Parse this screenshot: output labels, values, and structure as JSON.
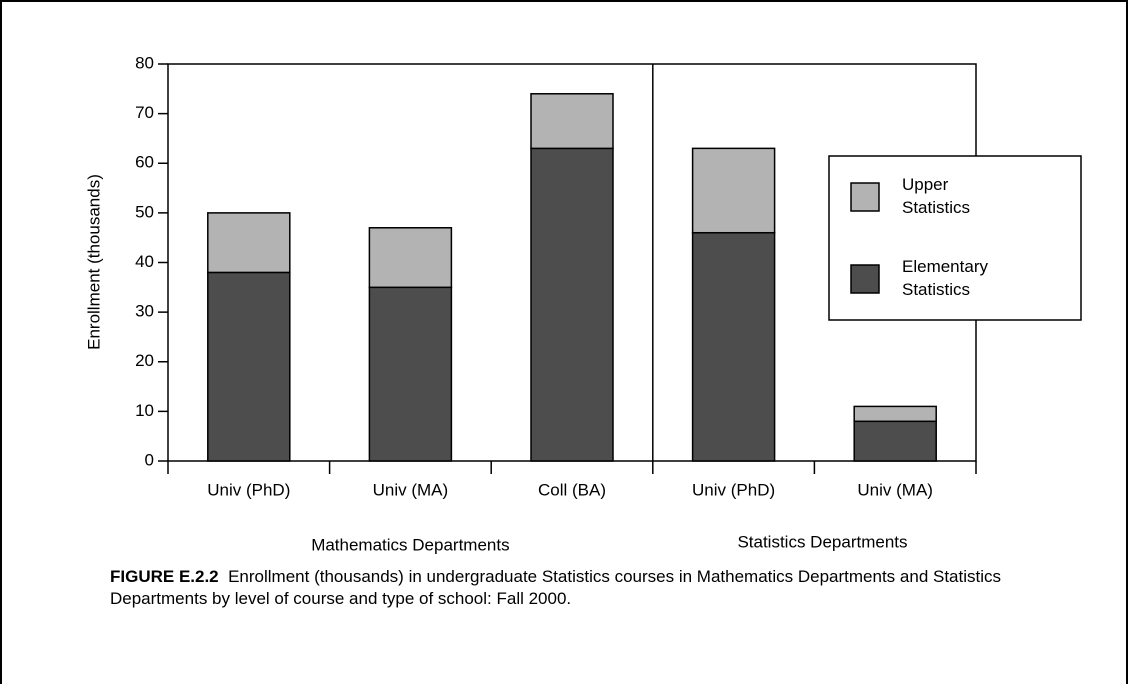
{
  "chart_data": {
    "type": "stacked_bar",
    "y_label": "Enrollment (thousands)",
    "categories": [
      "Univ (PhD)",
      "Univ (MA)",
      "Coll (BA)",
      "Univ (PhD)",
      "Univ (MA)"
    ],
    "groups": [
      "Mathematics Departments",
      "Statistics Departments"
    ],
    "series": [
      {
        "name": "Elementary Statistics",
        "color": "#4d4d4d",
        "values": [
          38,
          35,
          63,
          46,
          8
        ]
      },
      {
        "name": "Upper Statistics",
        "color": "#b3b3b3",
        "values": [
          12,
          12,
          11,
          17,
          3
        ]
      }
    ],
    "ylim": [
      0,
      80
    ],
    "yticks": [
      0,
      10,
      20,
      30,
      40,
      50,
      60,
      70,
      80
    ],
    "figure_label": "FIGURE E.2.2",
    "caption": "Enrollment (thousands) in undergraduate Statistics courses in Mathematics Departments and Statistics Departments by level of course and type of school: Fall 2000."
  }
}
